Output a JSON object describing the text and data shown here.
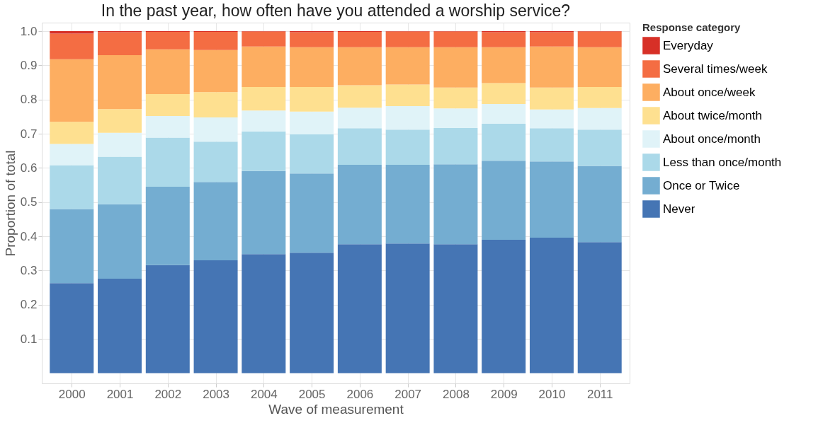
{
  "chart_data": {
    "type": "bar",
    "stacked": true,
    "title": "In the past year, how often have you attended a worship service?",
    "xlabel": "Wave of measurement",
    "ylabel": "Proportion of total",
    "legend_title": "Response category",
    "legend": "right",
    "grid": true,
    "categories": [
      "2000",
      "2001",
      "2002",
      "2003",
      "2004",
      "2005",
      "2006",
      "2007",
      "2008",
      "2009",
      "2010",
      "2011"
    ],
    "ylim": [
      -0.03,
      1.025
    ],
    "yticks": [
      0.1,
      0.2,
      0.3,
      0.4,
      0.5,
      0.6,
      0.7,
      0.8,
      0.9,
      {
        "value": 1.0,
        "label": "1.0"
      }
    ],
    "series": [
      {
        "name": "Never",
        "color": "#4575b4",
        "values": [
          0.263,
          0.276,
          0.316,
          0.33,
          0.348,
          0.352,
          0.377,
          0.379,
          0.377,
          0.39,
          0.396,
          0.383
        ]
      },
      {
        "name": "Once or Twice",
        "color": "#74add1",
        "values": [
          0.217,
          0.218,
          0.229,
          0.229,
          0.243,
          0.232,
          0.232,
          0.23,
          0.234,
          0.231,
          0.223,
          0.223
        ]
      },
      {
        "name": "Less than once/month",
        "color": "#abd9e9",
        "values": [
          0.128,
          0.139,
          0.144,
          0.118,
          0.116,
          0.114,
          0.107,
          0.103,
          0.106,
          0.108,
          0.097,
          0.106
        ]
      },
      {
        "name": "About once/month",
        "color": "#e0f3f8",
        "values": [
          0.062,
          0.07,
          0.063,
          0.071,
          0.061,
          0.067,
          0.06,
          0.069,
          0.057,
          0.058,
          0.055,
          0.063
        ]
      },
      {
        "name": "About twice/month",
        "color": "#fee090",
        "values": [
          0.065,
          0.069,
          0.064,
          0.074,
          0.069,
          0.072,
          0.066,
          0.063,
          0.061,
          0.061,
          0.064,
          0.062
        ]
      },
      {
        "name": "About once/week",
        "color": "#fdae61",
        "values": [
          0.183,
          0.158,
          0.131,
          0.123,
          0.118,
          0.116,
          0.111,
          0.109,
          0.118,
          0.105,
          0.12,
          0.116
        ]
      },
      {
        "name": "Several times/week",
        "color": "#f46d43",
        "values": [
          0.075,
          0.067,
          0.051,
          0.053,
          0.044,
          0.044,
          0.045,
          0.046,
          0.046,
          0.044,
          0.042,
          0.046
        ]
      },
      {
        "name": "Everyday",
        "color": "#d73027",
        "values": [
          0.007,
          0.003,
          0.002,
          0.002,
          0.001,
          0.003,
          0.002,
          0.001,
          0.001,
          0.003,
          0.003,
          0.001
        ]
      }
    ]
  }
}
